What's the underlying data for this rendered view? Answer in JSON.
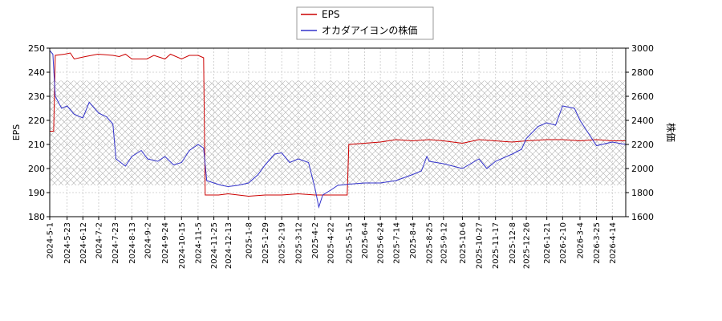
{
  "chart_data": {
    "type": "line",
    "title": "",
    "xlabel": "",
    "ylabel_left": "EPS",
    "ylabel_right": "株価",
    "ylim_left": [
      180,
      250
    ],
    "ylim_right": [
      1600,
      3000
    ],
    "yticks_left": [
      "180",
      "190",
      "200",
      "210",
      "220",
      "230",
      "240",
      "250"
    ],
    "yticks_right": [
      "1600",
      "1800",
      "2000",
      "2200",
      "2400",
      "2600",
      "2800",
      "3000"
    ],
    "xticks": [
      "2024-5-1",
      "2024-5-23",
      "2024-6-12",
      "2024-7-2",
      "2024-7-23",
      "2024-8-13",
      "2024-9-2",
      "2024-9-24",
      "2024-10-15",
      "2024-11-5",
      "2024-11-25",
      "2024-12-13",
      "2025-1-8",
      "2025-1-29",
      "2025-2-19",
      "2025-3-12",
      "2025-4-2",
      "2025-4-22",
      "2025-5-15",
      "2025-6-4",
      "2025-6-24",
      "2025-7-14",
      "2025-8-4",
      "2025-8-25",
      "2025-9-12",
      "2025-10-6",
      "2025-10-27",
      "2025-11-17",
      "2025-12-8",
      "2025-12-26",
      "2026-1-21",
      "2026-2-10",
      "2026-3-4",
      "2026-3-25",
      "2026-4-14"
    ],
    "x_range": [
      "2024-5-1",
      "2026-5-1"
    ],
    "grid": true,
    "legend_position": "top-center",
    "price_band": [
      1860,
      2730
    ],
    "series": [
      {
        "name": "EPS",
        "color": "#cc0000",
        "axis": "left",
        "points": [
          [
            "2024-5-1",
            215.5
          ],
          [
            "2024-5-6",
            215.5
          ],
          [
            "2024-5-8",
            247
          ],
          [
            "2024-5-20",
            247.5
          ],
          [
            "2024-5-27",
            248
          ],
          [
            "2024-6-1",
            245.5
          ],
          [
            "2024-6-15",
            246.5
          ],
          [
            "2024-7-1",
            247.5
          ],
          [
            "2024-7-20",
            247
          ],
          [
            "2024-7-28",
            246.5
          ],
          [
            "2024-8-5",
            247.5
          ],
          [
            "2024-8-13",
            245.5
          ],
          [
            "2024-9-1",
            245.5
          ],
          [
            "2024-9-10",
            247
          ],
          [
            "2024-9-24",
            245.5
          ],
          [
            "2024-10-1",
            247.5
          ],
          [
            "2024-10-15",
            245.5
          ],
          [
            "2024-10-25",
            247
          ],
          [
            "2024-11-5",
            247
          ],
          [
            "2024-11-12",
            246
          ],
          [
            "2024-11-14",
            189
          ],
          [
            "2024-12-1",
            189
          ],
          [
            "2024-12-13",
            189.5
          ],
          [
            "2025-1-8",
            188.5
          ],
          [
            "2025-1-29",
            189
          ],
          [
            "2025-2-19",
            189
          ],
          [
            "2025-3-12",
            189.5
          ],
          [
            "2025-4-2",
            189
          ],
          [
            "2025-4-22",
            189
          ],
          [
            "2025-5-13",
            189
          ],
          [
            "2025-5-15",
            210
          ],
          [
            "2025-6-4",
            210.5
          ],
          [
            "2025-6-24",
            211
          ],
          [
            "2025-7-14",
            212
          ],
          [
            "2025-8-4",
            211.5
          ],
          [
            "2025-8-25",
            212
          ],
          [
            "2025-9-12",
            211.5
          ],
          [
            "2025-10-6",
            210.5
          ],
          [
            "2025-10-27",
            212
          ],
          [
            "2025-11-17",
            211.5
          ],
          [
            "2025-12-8",
            211
          ],
          [
            "2025-12-26",
            211.5
          ],
          [
            "2026-1-21",
            212
          ],
          [
            "2026-2-10",
            212
          ],
          [
            "2026-3-4",
            211.5
          ],
          [
            "2026-3-25",
            212
          ],
          [
            "2026-4-14",
            211.5
          ],
          [
            "2026-5-1",
            211.5
          ]
        ]
      },
      {
        "name": "オカダアイヨンの株価",
        "color": "#3333cc",
        "axis": "right",
        "points": [
          [
            "2024-5-1",
            2980
          ],
          [
            "2024-5-5",
            2950
          ],
          [
            "2024-5-8",
            2600
          ],
          [
            "2024-5-16",
            2500
          ],
          [
            "2024-5-23",
            2520
          ],
          [
            "2024-6-1",
            2450
          ],
          [
            "2024-6-12",
            2420
          ],
          [
            "2024-6-20",
            2550
          ],
          [
            "2024-7-2",
            2460
          ],
          [
            "2024-7-12",
            2430
          ],
          [
            "2024-7-20",
            2370
          ],
          [
            "2024-7-24",
            2080
          ],
          [
            "2024-8-5",
            2020
          ],
          [
            "2024-8-13",
            2100
          ],
          [
            "2024-8-25",
            2150
          ],
          [
            "2024-9-2",
            2080
          ],
          [
            "2024-9-15",
            2060
          ],
          [
            "2024-9-24",
            2100
          ],
          [
            "2024-10-5",
            2030
          ],
          [
            "2024-10-15",
            2050
          ],
          [
            "2024-10-25",
            2150
          ],
          [
            "2024-11-5",
            2200
          ],
          [
            "2024-11-12",
            2170
          ],
          [
            "2024-11-16",
            1900
          ],
          [
            "2024-11-25",
            1880
          ],
          [
            "2024-12-5",
            1860
          ],
          [
            "2024-12-13",
            1850
          ],
          [
            "2024-12-25",
            1860
          ],
          [
            "2025-1-8",
            1880
          ],
          [
            "2025-1-20",
            1950
          ],
          [
            "2025-1-29",
            2030
          ],
          [
            "2025-2-10",
            2120
          ],
          [
            "2025-2-19",
            2130
          ],
          [
            "2025-3-1",
            2050
          ],
          [
            "2025-3-12",
            2080
          ],
          [
            "2025-3-25",
            2050
          ],
          [
            "2025-4-2",
            1840
          ],
          [
            "2025-4-7",
            1680
          ],
          [
            "2025-4-12",
            1780
          ],
          [
            "2025-4-22",
            1820
          ],
          [
            "2025-5-1",
            1860
          ],
          [
            "2025-5-15",
            1870
          ],
          [
            "2025-6-4",
            1880
          ],
          [
            "2025-6-24",
            1880
          ],
          [
            "2025-7-14",
            1900
          ],
          [
            "2025-8-4",
            1950
          ],
          [
            "2025-8-15",
            1980
          ],
          [
            "2025-8-22",
            2100
          ],
          [
            "2025-8-25",
            2060
          ],
          [
            "2025-9-12",
            2040
          ],
          [
            "2025-10-6",
            2000
          ],
          [
            "2025-10-27",
            2080
          ],
          [
            "2025-11-6",
            2000
          ],
          [
            "2025-11-17",
            2060
          ],
          [
            "2025-12-8",
            2120
          ],
          [
            "2025-12-20",
            2160
          ],
          [
            "2025-12-26",
            2250
          ],
          [
            "2026-1-10",
            2350
          ],
          [
            "2026-1-21",
            2380
          ],
          [
            "2026-2-1",
            2360
          ],
          [
            "2026-2-10",
            2520
          ],
          [
            "2026-2-25",
            2500
          ],
          [
            "2026-3-4",
            2400
          ],
          [
            "2026-3-14",
            2300
          ],
          [
            "2026-3-25",
            2190
          ],
          [
            "2026-4-14",
            2220
          ],
          [
            "2026-5-1",
            2200
          ]
        ]
      }
    ]
  }
}
